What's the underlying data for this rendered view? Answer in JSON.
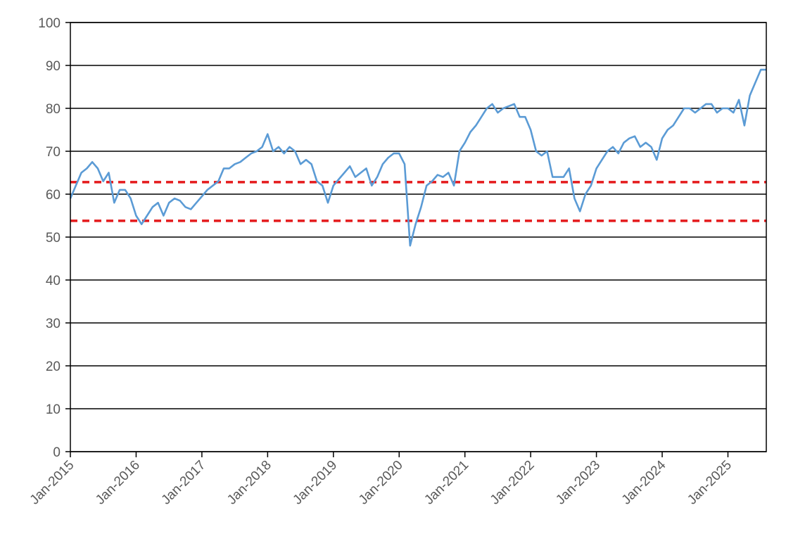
{
  "chart_data": {
    "type": "line",
    "title": "",
    "xlabel": "",
    "ylabel": "",
    "xlim": [
      "2015-01",
      "2025-08"
    ],
    "ylim": [
      0,
      100
    ],
    "y_ticks": [
      0,
      10,
      20,
      30,
      40,
      50,
      60,
      70,
      80,
      90,
      100
    ],
    "x_ticks": [
      "Jan-2015",
      "Jan-2016",
      "Jan-2017",
      "Jan-2018",
      "Jan-2019",
      "Jan-2020",
      "Jan-2021",
      "Jan-2022",
      "Jan-2023",
      "Jan-2024",
      "Jan-2025"
    ],
    "grid": "horizontal",
    "legend": "none",
    "series": [
      {
        "color": "#5B9BD5",
        "x": [
          "2015-01",
          "2015-02",
          "2015-03",
          "2015-04",
          "2015-05",
          "2015-06",
          "2015-07",
          "2015-08",
          "2015-09",
          "2015-10",
          "2015-11",
          "2015-12",
          "2016-01",
          "2016-02",
          "2016-03",
          "2016-04",
          "2016-05",
          "2016-06",
          "2016-07",
          "2016-08",
          "2016-09",
          "2016-10",
          "2016-11",
          "2016-12",
          "2017-01",
          "2017-02",
          "2017-03",
          "2017-04",
          "2017-05",
          "2017-06",
          "2017-07",
          "2017-08",
          "2017-09",
          "2017-10",
          "2017-11",
          "2017-12",
          "2018-01",
          "2018-02",
          "2018-03",
          "2018-04",
          "2018-05",
          "2018-06",
          "2018-07",
          "2018-08",
          "2018-09",
          "2018-10",
          "2018-11",
          "2018-12",
          "2019-01",
          "2019-02",
          "2019-03",
          "2019-04",
          "2019-05",
          "2019-06",
          "2019-07",
          "2019-08",
          "2019-09",
          "2019-10",
          "2019-11",
          "2019-12",
          "2020-01",
          "2020-02",
          "2020-03",
          "2020-04",
          "2020-05",
          "2020-06",
          "2020-07",
          "2020-08",
          "2020-09",
          "2020-10",
          "2020-11",
          "2020-12",
          "2021-01",
          "2021-02",
          "2021-03",
          "2021-04",
          "2021-05",
          "2021-06",
          "2021-07",
          "2021-08",
          "2021-09",
          "2021-10",
          "2021-11",
          "2021-12",
          "2022-01",
          "2022-02",
          "2022-03",
          "2022-04",
          "2022-05",
          "2022-06",
          "2022-07",
          "2022-08",
          "2022-09",
          "2022-10",
          "2022-11",
          "2022-12",
          "2023-01",
          "2023-02",
          "2023-03",
          "2023-04",
          "2023-05",
          "2023-06",
          "2023-07",
          "2023-08",
          "2023-09",
          "2023-10",
          "2023-11",
          "2023-12",
          "2024-01",
          "2024-02",
          "2024-03",
          "2024-04",
          "2024-05",
          "2024-06",
          "2024-07",
          "2024-08",
          "2024-09",
          "2024-10",
          "2024-11",
          "2024-12",
          "2025-01",
          "2025-02",
          "2025-03",
          "2025-04",
          "2025-05",
          "2025-06",
          "2025-07",
          "2025-08"
        ],
        "values": [
          59,
          62,
          65,
          66,
          67.5,
          66,
          63,
          65,
          58,
          61,
          61,
          59,
          55,
          53,
          55,
          57,
          58,
          55,
          58,
          59,
          58.5,
          57,
          56.5,
          58,
          59.5,
          61,
          62,
          63,
          66,
          66,
          67,
          67.5,
          68.5,
          69.5,
          70,
          71,
          74,
          70,
          71,
          69.5,
          71,
          70,
          67,
          68,
          67,
          63,
          62,
          58,
          62,
          63.5,
          65,
          66.5,
          64,
          65,
          66,
          62,
          64,
          67,
          68.5,
          69.5,
          69.5,
          67,
          48,
          53,
          57,
          62,
          63,
          64.5,
          64,
          65,
          62,
          70,
          72,
          74.5,
          76,
          78,
          80,
          81,
          79,
          80,
          80.5,
          81,
          78,
          78,
          75,
          70,
          69,
          70,
          64,
          64,
          64,
          66,
          59,
          56,
          60,
          62,
          66,
          68,
          70,
          71,
          69.5,
          72,
          73,
          73.5,
          71,
          72,
          71,
          68,
          73,
          75,
          76,
          78,
          80,
          80,
          79,
          80,
          81,
          81,
          79,
          80,
          80,
          79,
          82,
          76,
          83,
          86,
          89,
          89
        ]
      }
    ],
    "reference_lines": [
      {
        "y": 62.8,
        "color": "#E41A1C",
        "style": "dashed"
      },
      {
        "y": 53.8,
        "color": "#E41A1C",
        "style": "dashed"
      }
    ]
  }
}
